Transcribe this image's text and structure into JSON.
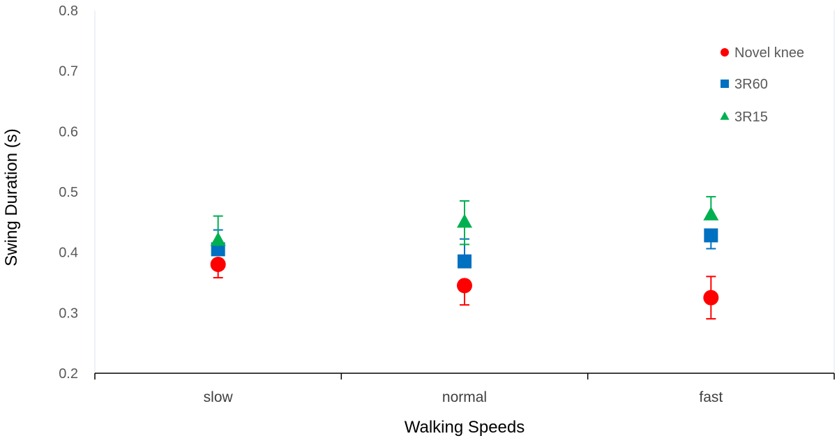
{
  "chart_data": {
    "type": "scatter",
    "title": "",
    "xlabel": "Walking Speeds",
    "ylabel": "Swing Duration (s)",
    "categories": [
      "slow",
      "normal",
      "fast"
    ],
    "ylim": [
      0.2,
      0.8
    ],
    "yticks": [
      "0.2",
      "0.3",
      "0.4",
      "0.5",
      "0.6",
      "0.7",
      "0.8"
    ],
    "ytick_values": [
      0.2,
      0.3,
      0.4,
      0.5,
      0.6,
      0.7,
      0.8
    ],
    "grid": false,
    "legend_position": "top-right",
    "series": [
      {
        "name": "Novel knee",
        "marker": "circle",
        "color": "#ff0000",
        "values": [
          0.38,
          0.345,
          0.325
        ],
        "err_low": [
          0.358,
          0.313,
          0.29
        ],
        "err_high": [
          0.38,
          0.345,
          0.36
        ]
      },
      {
        "name": "3R60",
        "marker": "square",
        "color": "#0070c0",
        "values": [
          0.405,
          0.385,
          0.428
        ],
        "err_low": [
          0.405,
          0.385,
          0.406
        ],
        "err_high": [
          0.437,
          0.422,
          0.428
        ]
      },
      {
        "name": "3R15",
        "marker": "triangle",
        "color": "#00b050",
        "values": [
          0.42,
          0.45,
          0.462
        ],
        "err_low": [
          0.42,
          0.413,
          0.462
        ],
        "err_high": [
          0.46,
          0.485,
          0.492
        ]
      }
    ]
  }
}
